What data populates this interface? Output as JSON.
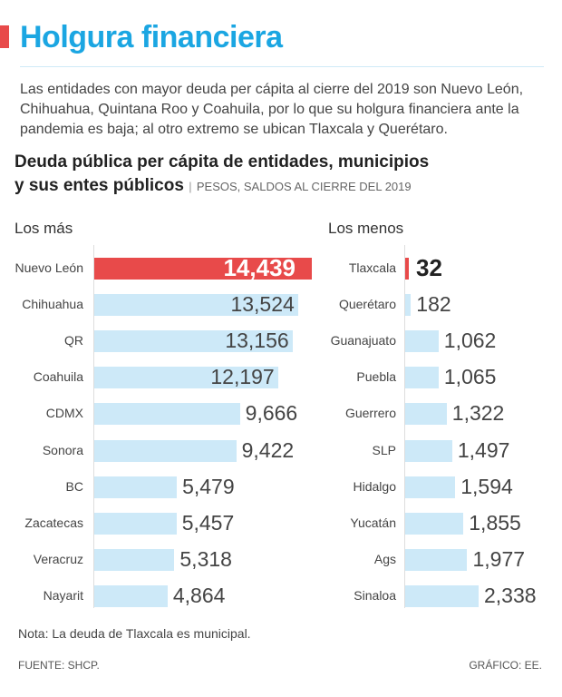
{
  "title": "Holgura financiera",
  "lede": "Las entidades con mayor deuda per cápita al cierre del 2019 son Nuevo León, Chihuahua, Quintana Roo y Coahuila, por lo que su holgura financiera ante la pandemia es baja; al otro extremo se ubican Tlaxcala y Querétaro.",
  "colors": {
    "title": "#1ba6e2",
    "bar": "#cde9f8",
    "highlight": "#e84a4a"
  },
  "chart_data": [
    {
      "type": "bar",
      "orientation": "horizontal",
      "title": "Deuda pública per cápita de entidades, municipios y sus entes públicos",
      "title_line1": "Deuda pública per cápita de entidades, municipios",
      "title_line2": "y sus entes públicos",
      "unit": "PESOS, SALDOS AL CIERRE DEL 2019",
      "panel": "Los más",
      "categories": [
        "Nuevo León",
        "Chihuahua",
        "QR",
        "Coahuila",
        "CDMX",
        "Sonora",
        "BC",
        "Zacatecas",
        "Veracruz",
        "Nayarit"
      ],
      "values": [
        14439,
        13524,
        13156,
        12197,
        9666,
        9422,
        5479,
        5457,
        5318,
        4864
      ],
      "labels": [
        "14,439",
        "13,524",
        "13,156",
        "12,197",
        "9,666",
        "9,422",
        "5,479",
        "5,457",
        "5,318",
        "4,864"
      ],
      "highlight": 0
    },
    {
      "type": "bar",
      "orientation": "horizontal",
      "panel": "Los menos",
      "categories": [
        "Tlaxcala",
        "Querétaro",
        "Guanajuato",
        "Puebla",
        "Guerrero",
        "SLP",
        "Hidalgo",
        "Yucatán",
        "Ags",
        "Sinaloa"
      ],
      "values": [
        32,
        182,
        1062,
        1065,
        1322,
        1497,
        1594,
        1855,
        1977,
        2338
      ],
      "labels": [
        "32",
        "182",
        "1,062",
        "1,065",
        "1,322",
        "1,497",
        "1,594",
        "1,855",
        "1,977",
        "2,338"
      ],
      "highlight": 0
    }
  ],
  "note": "Nota: La deuda de Tlaxcala es municipal.",
  "source": "FUENTE: SHCP.",
  "credit": "GRÁFICO: EE."
}
